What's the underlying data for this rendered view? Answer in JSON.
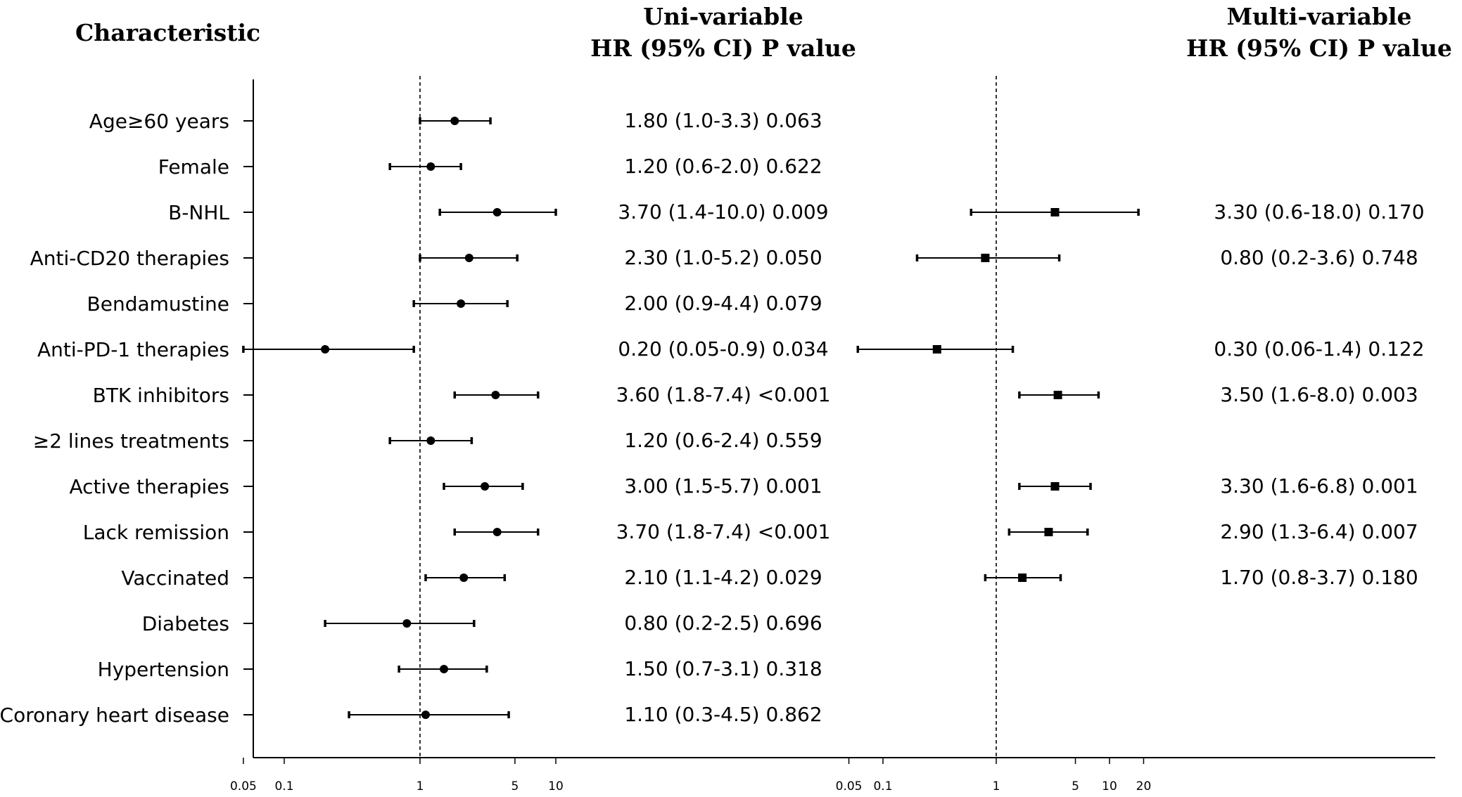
{
  "chart_data": {
    "type": "forest",
    "headers": {
      "characteristic": "Characteristic",
      "uni_title": "Uni-variable",
      "uni_sub": "HR (95% CI)  P value",
      "multi_title": "Multi-variable",
      "multi_sub": "HR (95% CI)  P value"
    },
    "x_scale": "log",
    "reference_line": 1,
    "uni_ticks": [
      "0.05",
      "0.1",
      "1",
      "5",
      "10"
    ],
    "multi_ticks": [
      "0.05",
      "0.1",
      "1",
      "5",
      "10",
      "20"
    ],
    "rows": [
      {
        "label": "Age≥60 years",
        "uni": {
          "hr": 1.8,
          "lo": 1.0,
          "hi": 3.3,
          "text": "1.80 (1.0-3.3) 0.063"
        },
        "multi": null
      },
      {
        "label": "Female",
        "uni": {
          "hr": 1.2,
          "lo": 0.6,
          "hi": 2.0,
          "text": "1.20 (0.6-2.0) 0.622"
        },
        "multi": null
      },
      {
        "label": "B-NHL",
        "uni": {
          "hr": 3.7,
          "lo": 1.4,
          "hi": 10.0,
          "text": "3.70 (1.4-10.0) 0.009"
        },
        "multi": {
          "hr": 3.3,
          "lo": 0.6,
          "hi": 18.0,
          "text": "3.30 (0.6-18.0) 0.170"
        }
      },
      {
        "label": "Anti-CD20 therapies",
        "uni": {
          "hr": 2.3,
          "lo": 1.0,
          "hi": 5.2,
          "text": "2.30 (1.0-5.2) 0.050"
        },
        "multi": {
          "hr": 0.8,
          "lo": 0.2,
          "hi": 3.6,
          "text": "0.80 (0.2-3.6) 0.748"
        }
      },
      {
        "label": "Bendamustine",
        "uni": {
          "hr": 2.0,
          "lo": 0.9,
          "hi": 4.4,
          "text": "2.00 (0.9-4.4) 0.079"
        },
        "multi": null
      },
      {
        "label": "Anti-PD-1 therapies",
        "uni": {
          "hr": 0.2,
          "lo": 0.05,
          "hi": 0.9,
          "text": "0.20 (0.05-0.9) 0.034"
        },
        "multi": {
          "hr": 0.3,
          "lo": 0.06,
          "hi": 1.4,
          "text": "0.30 (0.06-1.4) 0.122"
        }
      },
      {
        "label": "BTK inhibitors",
        "uni": {
          "hr": 3.6,
          "lo": 1.8,
          "hi": 7.4,
          "text": "3.60 (1.8-7.4) <0.001"
        },
        "multi": {
          "hr": 3.5,
          "lo": 1.6,
          "hi": 8.0,
          "text": "3.50 (1.6-8.0) 0.003"
        }
      },
      {
        "label": "≥2 lines treatments",
        "uni": {
          "hr": 1.2,
          "lo": 0.6,
          "hi": 2.4,
          "text": "1.20 (0.6-2.4) 0.559"
        },
        "multi": null
      },
      {
        "label": "Active therapies",
        "uni": {
          "hr": 3.0,
          "lo": 1.5,
          "hi": 5.7,
          "text": "3.00 (1.5-5.7) 0.001"
        },
        "multi": {
          "hr": 3.3,
          "lo": 1.6,
          "hi": 6.8,
          "text": "3.30 (1.6-6.8) 0.001"
        }
      },
      {
        "label": "Lack remission",
        "uni": {
          "hr": 3.7,
          "lo": 1.8,
          "hi": 7.4,
          "text": "3.70 (1.8-7.4) <0.001"
        },
        "multi": {
          "hr": 2.9,
          "lo": 1.3,
          "hi": 6.4,
          "text": "2.90 (1.3-6.4) 0.007"
        }
      },
      {
        "label": "Vaccinated",
        "uni": {
          "hr": 2.1,
          "lo": 1.1,
          "hi": 4.2,
          "text": "2.10 (1.1-4.2) 0.029"
        },
        "multi": {
          "hr": 1.7,
          "lo": 0.8,
          "hi": 3.7,
          "text": "1.70 (0.8-3.7) 0.180"
        }
      },
      {
        "label": "Diabetes",
        "uni": {
          "hr": 0.8,
          "lo": 0.2,
          "hi": 2.5,
          "text": "0.80 (0.2-2.5) 0.696"
        },
        "multi": null
      },
      {
        "label": "Hypertension",
        "uni": {
          "hr": 1.5,
          "lo": 0.7,
          "hi": 3.1,
          "text": "1.50 (0.7-3.1) 0.318"
        },
        "multi": null
      },
      {
        "label": "Coronary heart disease",
        "uni": {
          "hr": 1.1,
          "lo": 0.3,
          "hi": 4.5,
          "text": "1.10 (0.3-4.5) 0.862"
        },
        "multi": null
      }
    ]
  }
}
